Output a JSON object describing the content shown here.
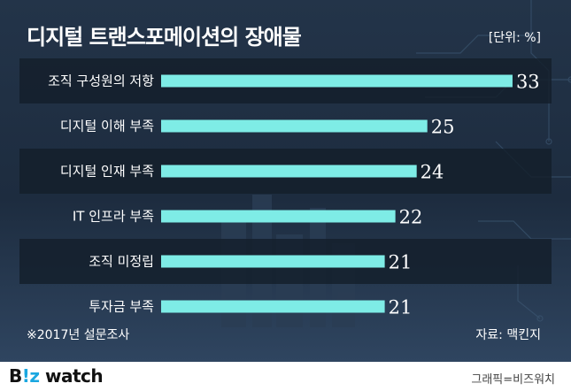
{
  "header": {
    "title": "디지털 트랜스포메이션의 장애물",
    "unit": "[단위: %]"
  },
  "chart_data": {
    "type": "bar",
    "orientation": "horizontal",
    "categories": [
      "조직 구성원의 저항",
      "디지털 이해 부족",
      "디지털 인재 부족",
      "IT 인프라 부족",
      "조직 미정립",
      "투자금 부족"
    ],
    "values": [
      33,
      25,
      24,
      22,
      21,
      21
    ],
    "xlim": [
      0,
      35
    ],
    "bar_color": "#7eece6",
    "label_color": "#ffffff"
  },
  "footer": {
    "note": "※2017년 설문조사",
    "source": "자료: 맥킨지",
    "credit": "그래픽=비즈워치"
  },
  "brand": {
    "logo_b": "B",
    "logo_mark": "!z",
    "logo_rest": " watch"
  },
  "colors": {
    "background": "#1c2a3c",
    "band_dark": "#141e2b",
    "bar": "#7eece6",
    "accent": "#1aa7e0"
  }
}
